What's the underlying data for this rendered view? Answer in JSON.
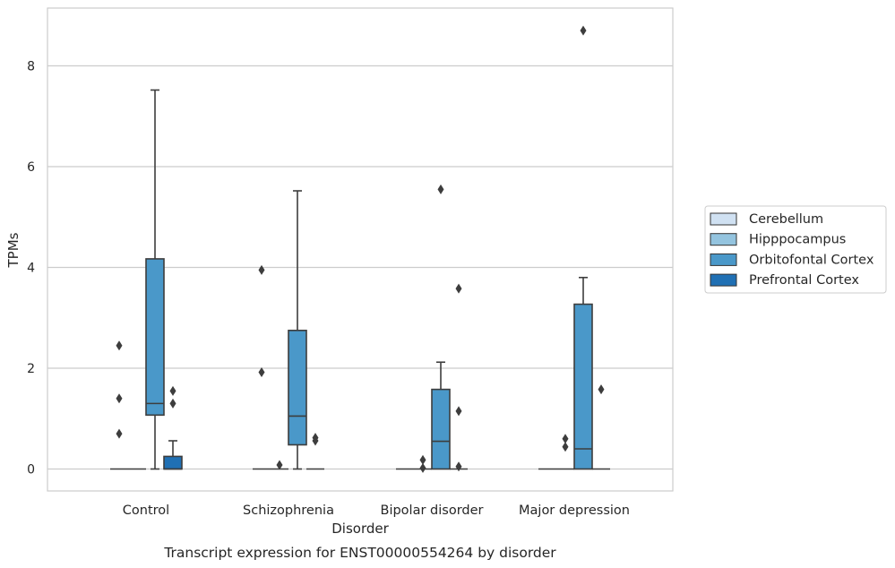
{
  "chart_data": {
    "type": "box",
    "title": "Transcript expression for ENST00000554264 by disorder",
    "xlabel": "Disorder",
    "ylabel": "TPMs",
    "categories": [
      "Control",
      "Schizophrenia",
      "Bipolar disorder",
      "Major depression"
    ],
    "ylim": [
      -0.42,
      9.15
    ],
    "yticks": [
      0,
      2,
      4,
      6,
      8
    ],
    "grid": "horizontal",
    "legend_position": "right",
    "series": [
      {
        "name": "Cerebellum",
        "color": "#d0e1f2",
        "boxes": [
          {
            "whislo": 0,
            "q1": 0,
            "med": 0,
            "q3": 0,
            "whishi": 0,
            "fliers": [
              2.45,
              1.4,
              0.7
            ]
          },
          {
            "whislo": 0,
            "q1": 0,
            "med": 0,
            "q3": 0,
            "whishi": 0,
            "fliers": [
              3.95,
              1.92
            ]
          },
          {
            "whislo": 0,
            "q1": 0,
            "med": 0,
            "q3": 0,
            "whishi": 0,
            "fliers": []
          },
          {
            "whislo": 0,
            "q1": 0,
            "med": 0,
            "q3": 0,
            "whishi": 0,
            "fliers": []
          }
        ]
      },
      {
        "name": "Hipppocampus",
        "color": "#94c4df",
        "boxes": [
          {
            "whislo": 0,
            "q1": 0,
            "med": 0,
            "q3": 0,
            "whishi": 0,
            "fliers": []
          },
          {
            "whislo": 0,
            "q1": 0,
            "med": 0,
            "q3": 0,
            "whishi": 0,
            "fliers": [
              0.08
            ]
          },
          {
            "whislo": 0,
            "q1": 0,
            "med": 0,
            "q3": 0,
            "whishi": 0,
            "fliers": [
              0.18,
              0.02
            ]
          },
          {
            "whislo": 0,
            "q1": 0,
            "med": 0,
            "q3": 0,
            "whishi": 0,
            "fliers": [
              0.44,
              0.6
            ]
          }
        ]
      },
      {
        "name": "Orbitofontal Cortex",
        "color": "#4a98c9",
        "boxes": [
          {
            "whislo": 0,
            "q1": 1.07,
            "med": 1.3,
            "q3": 4.17,
            "whishi": 7.52,
            "fliers": []
          },
          {
            "whislo": 0,
            "q1": 0.48,
            "med": 1.05,
            "q3": 2.75,
            "whishi": 5.52,
            "fliers": []
          },
          {
            "whislo": 0,
            "q1": 0,
            "med": 0.55,
            "q3": 1.58,
            "whishi": 2.12,
            "fliers": [
              5.55
            ]
          },
          {
            "whislo": 0,
            "q1": 0,
            "med": 0.4,
            "q3": 3.27,
            "whishi": 3.8,
            "fliers": [
              8.7
            ]
          }
        ]
      },
      {
        "name": "Prefrontal Cortex",
        "color": "#2070b4",
        "boxes": [
          {
            "whislo": 0,
            "q1": 0,
            "med": 0,
            "q3": 0.25,
            "whishi": 0.56,
            "fliers": [
              1.55,
              1.3
            ]
          },
          {
            "whislo": 0,
            "q1": 0,
            "med": 0,
            "q3": 0,
            "whishi": 0,
            "fliers": [
              0.62,
              0.56
            ]
          },
          {
            "whislo": 0,
            "q1": 0,
            "med": 0,
            "q3": 0,
            "whishi": 0,
            "fliers": [
              3.58,
              1.15,
              0.05
            ]
          },
          {
            "whislo": 0,
            "q1": 0,
            "med": 0,
            "q3": 0,
            "whishi": 0,
            "fliers": [
              1.58
            ]
          }
        ]
      }
    ]
  }
}
